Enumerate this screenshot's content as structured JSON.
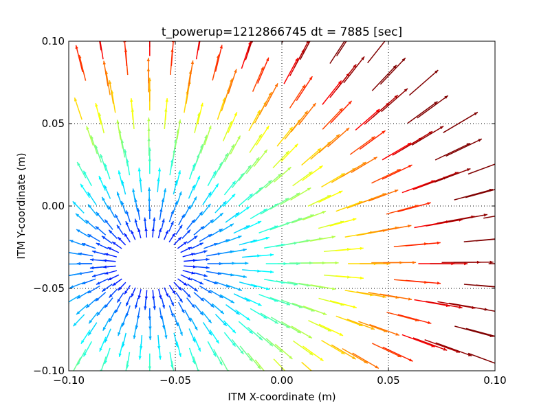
{
  "chart_data": {
    "type": "quiver",
    "title": "t_powerup=1212866745 dt = 7885 [sec]",
    "xlabel": "ITM X-coordinate (m)",
    "ylabel": "ITM Y-coordinate (m)",
    "xlim": [
      -0.1,
      0.1
    ],
    "ylim": [
      -0.1,
      0.1
    ],
    "xticks": [
      -0.1,
      -0.05,
      0.0,
      0.05,
      0.1
    ],
    "yticks": [
      -0.1,
      -0.05,
      0.0,
      0.05,
      0.1
    ],
    "xtick_labels": [
      "−0.10",
      "−0.05",
      "0.00",
      "0.05",
      "0.10"
    ],
    "ytick_labels": [
      "−0.10",
      "−0.05",
      "0.00",
      "0.05",
      "0.10"
    ],
    "grid": "dotted",
    "colormap": "jet",
    "field": {
      "description_of_sampling": "vectors sampled on a polar grid of the ITM face",
      "center": [
        -0.062,
        -0.035
      ],
      "radial_spacing": 0.0055,
      "angle_step_deg": 10,
      "disc_radius": 0.16,
      "magnitude_model": "length grows linearly with distance from center",
      "color_model": "jet value grows with distance from center"
    }
  }
}
